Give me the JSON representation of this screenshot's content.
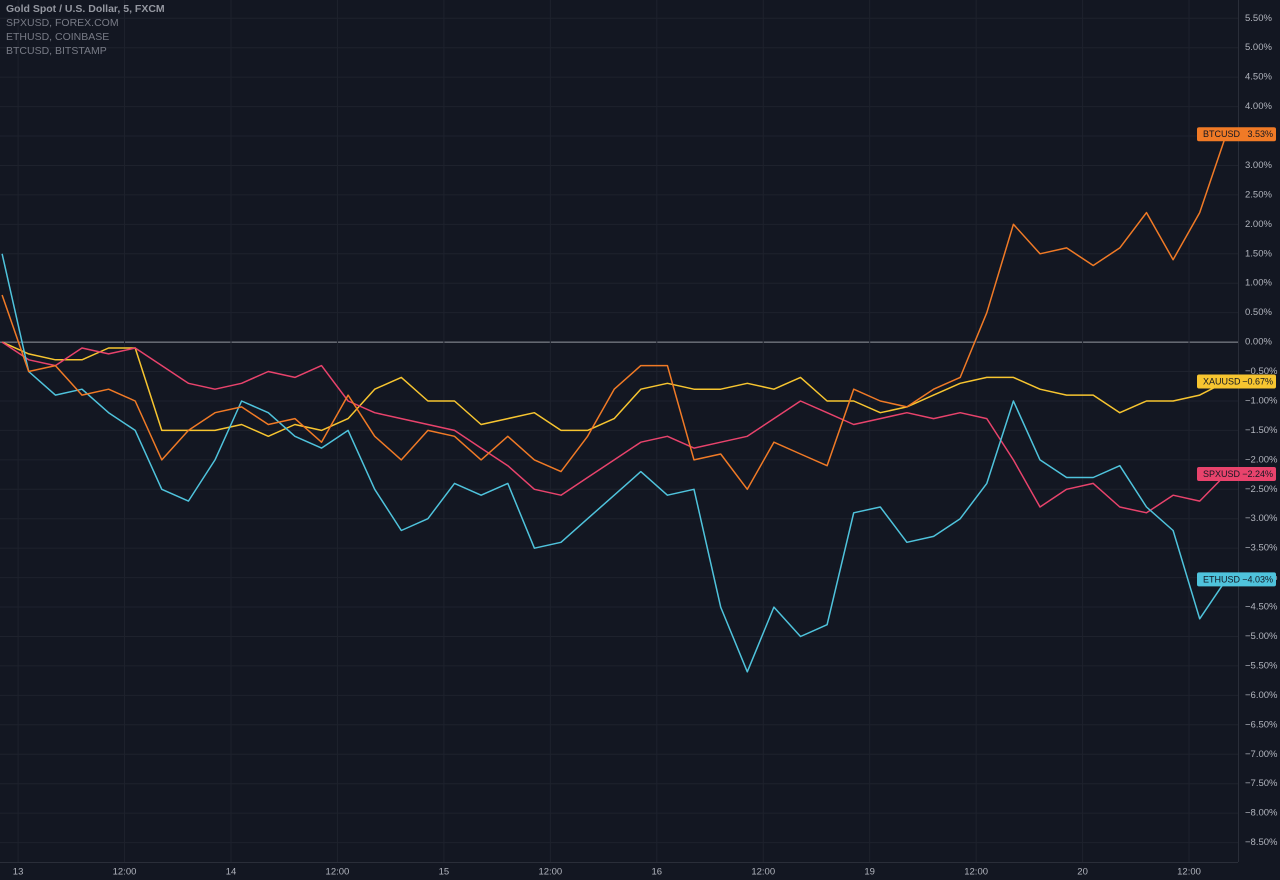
{
  "chart_data": {
    "type": "line",
    "title": "Gold Spot / U.S. Dollar, 5, FXCM",
    "x": [
      -0.15,
      0.1,
      0.35,
      0.6,
      0.85,
      1.1,
      1.35,
      1.6,
      1.85,
      2.1,
      2.35,
      2.6,
      2.85,
      3.1,
      3.35,
      3.6,
      3.85,
      4.1,
      4.35,
      4.6,
      4.85,
      5.1,
      5.35,
      5.6,
      5.85,
      6.1,
      6.35,
      6.6,
      6.85,
      7.1,
      7.35,
      7.6,
      7.85,
      8.1,
      8.35,
      8.6,
      8.85,
      9.1,
      9.35,
      9.6,
      9.85,
      10.1,
      10.35,
      10.6,
      10.85,
      11.1,
      11.35
    ],
    "xlim": [
      -0.17,
      11.46
    ],
    "xticks": [
      {
        "value": 0,
        "label": "13"
      },
      {
        "value": 1,
        "label": "12:00"
      },
      {
        "value": 2,
        "label": "14"
      },
      {
        "value": 3,
        "label": "12:00"
      },
      {
        "value": 4,
        "label": "15"
      },
      {
        "value": 5,
        "label": "12:00"
      },
      {
        "value": 6,
        "label": "16"
      },
      {
        "value": 7,
        "label": "12:00"
      },
      {
        "value": 8,
        "label": "19"
      },
      {
        "value": 9,
        "label": "12:00"
      },
      {
        "value": 10,
        "label": "20"
      },
      {
        "value": 11,
        "label": "12:00"
      }
    ],
    "ylim": [
      -8.83,
      5.81
    ],
    "yticks": [
      {
        "value": 5.5,
        "label": "5.50%"
      },
      {
        "value": 5,
        "label": "5.00%"
      },
      {
        "value": 4.5,
        "label": "4.50%"
      },
      {
        "value": 4,
        "label": "4.00%"
      },
      {
        "value": 3.5,
        "label": "3.50%"
      },
      {
        "value": 3,
        "label": "3.00%"
      },
      {
        "value": 2.5,
        "label": "2.50%"
      },
      {
        "value": 2,
        "label": "2.00%"
      },
      {
        "value": 1.5,
        "label": "1.50%"
      },
      {
        "value": 1,
        "label": "1.00%"
      },
      {
        "value": 0.5,
        "label": "0.50%"
      },
      {
        "value": 0,
        "label": "0.00%"
      },
      {
        "value": -0.5,
        "label": "−0.50%"
      },
      {
        "value": -1,
        "label": "−1.00%"
      },
      {
        "value": -1.5,
        "label": "−1.50%"
      },
      {
        "value": -2,
        "label": "−2.00%"
      },
      {
        "value": -2.5,
        "label": "−2.50%"
      },
      {
        "value": -3,
        "label": "−3.00%"
      },
      {
        "value": -3.5,
        "label": "−3.50%"
      },
      {
        "value": -4,
        "label": "−4.00%"
      },
      {
        "value": -4.5,
        "label": "−4.50%"
      },
      {
        "value": -5,
        "label": "−5.00%"
      },
      {
        "value": -5.5,
        "label": "−5.50%"
      },
      {
        "value": -6,
        "label": "−6.00%"
      },
      {
        "value": -6.5,
        "label": "−6.50%"
      },
      {
        "value": -7,
        "label": "−7.00%"
      },
      {
        "value": -7.5,
        "label": "−7.50%"
      },
      {
        "value": -8,
        "label": "−8.00%"
      },
      {
        "value": -8.5,
        "label": "−8.50%"
      }
    ],
    "grid": true,
    "series": [
      {
        "name": "XAUUSD",
        "color": "#f7c530",
        "last_label": "−0.67%",
        "values": [
          0,
          -0.2,
          -0.3,
          -0.3,
          -0.1,
          -0.1,
          -1.5,
          -1.5,
          -1.5,
          -1.4,
          -1.6,
          -1.4,
          -1.5,
          -1.3,
          -0.8,
          -0.6,
          -1.0,
          -1.0,
          -1.4,
          -1.3,
          -1.2,
          -1.5,
          -1.5,
          -1.3,
          -0.8,
          -0.7,
          -0.8,
          -0.8,
          -0.7,
          -0.8,
          -0.6,
          -1.0,
          -1.0,
          -1.2,
          -1.1,
          -0.9,
          -0.7,
          -0.6,
          -0.6,
          -0.8,
          -0.9,
          -0.9,
          -1.2,
          -1.0,
          -1.0,
          -0.9,
          -0.67
        ]
      },
      {
        "name": "SPXUSD",
        "source": "SPXUSD, FOREX.COM",
        "color": "#e8436c",
        "last_label": "−2.24%",
        "values": [
          0,
          -0.3,
          -0.4,
          -0.1,
          -0.2,
          -0.1,
          -0.4,
          -0.7,
          -0.8,
          -0.7,
          -0.5,
          -0.6,
          -0.4,
          -1.0,
          -1.2,
          -1.3,
          -1.4,
          -1.5,
          -1.8,
          -2.1,
          -2.5,
          -2.6,
          -2.3,
          -2.0,
          -1.7,
          -1.6,
          -1.8,
          -1.7,
          -1.6,
          -1.3,
          -1.0,
          -1.2,
          -1.4,
          -1.3,
          -1.2,
          -1.3,
          -1.2,
          -1.3,
          -2.0,
          -2.8,
          -2.5,
          -2.4,
          -2.8,
          -2.9,
          -2.6,
          -2.7,
          -2.24
        ]
      },
      {
        "name": "ETHUSD",
        "source": "ETHUSD, COINBASE",
        "color": "#4fc3dc",
        "last_label": "−4.03%",
        "values": [
          1.5,
          -0.5,
          -0.9,
          -0.8,
          -1.2,
          -1.5,
          -2.5,
          -2.7,
          -2.0,
          -1.0,
          -1.2,
          -1.6,
          -1.8,
          -1.5,
          -2.5,
          -3.2,
          -3.0,
          -2.4,
          -2.6,
          -2.4,
          -3.5,
          -3.4,
          -3.0,
          -2.6,
          -2.2,
          -2.6,
          -2.5,
          -4.5,
          -5.6,
          -4.5,
          -5.0,
          -4.8,
          -2.9,
          -2.8,
          -3.4,
          -3.3,
          -3.0,
          -2.4,
          -1.0,
          -2.0,
          -2.3,
          -2.3,
          -2.1,
          -2.8,
          -3.2,
          -4.7,
          -4.03
        ]
      },
      {
        "name": "BTCUSD",
        "source": "BTCUSD, BITSTAMP",
        "color": "#f07a26",
        "last_label": "3.53%",
        "values": [
          0.8,
          -0.5,
          -0.4,
          -0.9,
          -0.8,
          -1.0,
          -2.0,
          -1.5,
          -1.2,
          -1.1,
          -1.4,
          -1.3,
          -1.7,
          -0.9,
          -1.6,
          -2.0,
          -1.5,
          -1.6,
          -2.0,
          -1.6,
          -2.0,
          -2.2,
          -1.6,
          -0.8,
          -0.4,
          -0.4,
          -2.0,
          -1.9,
          -2.5,
          -1.7,
          -1.9,
          -2.1,
          -0.8,
          -1.0,
          -1.1,
          -0.8,
          -0.6,
          0.5,
          2.0,
          1.5,
          1.6,
          1.3,
          1.6,
          2.2,
          1.4,
          2.2,
          3.53
        ]
      }
    ]
  }
}
